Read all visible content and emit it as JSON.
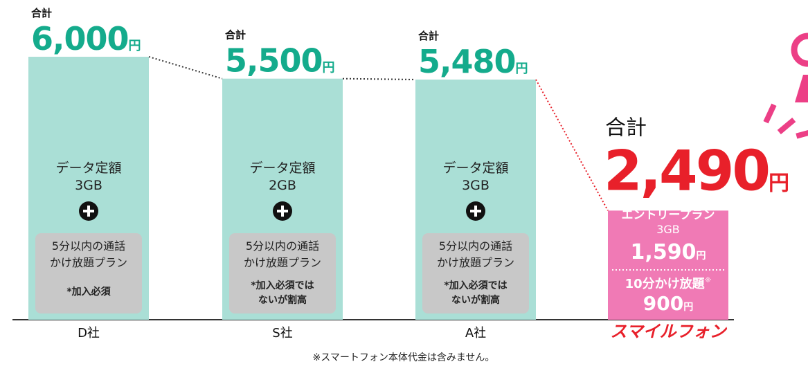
{
  "chart_data": {
    "type": "bar",
    "categories": [
      "D社",
      "S社",
      "A社",
      "スマイルフォン"
    ],
    "values": [
      6000,
      5500,
      5480,
      2490
    ],
    "value_labels": [
      "6,000",
      "5,500",
      "5,480",
      "2,490"
    ],
    "colors": [
      "#aadfd6",
      "#aadfd6",
      "#aadfd6",
      "#f07ab5"
    ],
    "label_colors": [
      "#14ab8c",
      "#14ab8c",
      "#14ab8c",
      "#e8202a"
    ],
    "total_label": "合計",
    "unit": "円",
    "plans": [
      {
        "data": "データ定額",
        "size": "3GB",
        "call": [
          "5分以内の通話",
          "かけ放題プラン"
        ],
        "note": [
          "*加入必須"
        ]
      },
      {
        "data": "データ定額",
        "size": "2GB",
        "call": [
          "5分以内の通話",
          "かけ放題プラン"
        ],
        "note": [
          "*加入必須では",
          "ないが割高"
        ]
      },
      {
        "data": "データ定額",
        "size": "3GB",
        "call": [
          "5分以内の通話",
          "かけ放題プラン"
        ],
        "note": [
          "*加入必須では",
          "ないが割高"
        ]
      }
    ],
    "smile_plan": {
      "entry": "エントリープラン",
      "size": "3GB",
      "price": "1,590",
      "call": "10分かけ放題",
      "mark": "※",
      "call_price": "900"
    },
    "footnote": "※スマートフォン本体代金は含みません。"
  }
}
